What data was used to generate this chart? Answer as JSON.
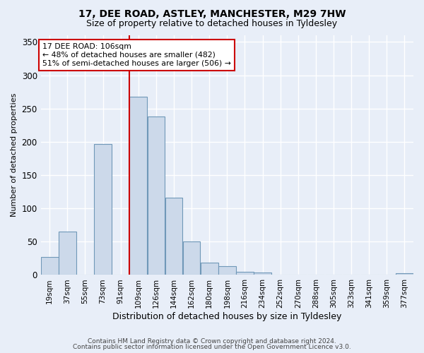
{
  "title_line1": "17, DEE ROAD, ASTLEY, MANCHESTER, M29 7HW",
  "title_line2": "Size of property relative to detached houses in Tyldesley",
  "xlabel": "Distribution of detached houses by size in Tyldesley",
  "ylabel": "Number of detached properties",
  "bin_labels": [
    "19sqm",
    "37sqm",
    "55sqm",
    "73sqm",
    "91sqm",
    "109sqm",
    "126sqm",
    "144sqm",
    "162sqm",
    "180sqm",
    "198sqm",
    "216sqm",
    "234sqm",
    "252sqm",
    "270sqm",
    "288sqm",
    "305sqm",
    "323sqm",
    "341sqm",
    "359sqm",
    "377sqm"
  ],
  "bar_heights": [
    27,
    65,
    0,
    197,
    0,
    268,
    238,
    116,
    50,
    18,
    13,
    5,
    4,
    0,
    1,
    0,
    0,
    0,
    0,
    0,
    3
  ],
  "bar_color": "#ccd9ea",
  "bar_edge_color": "#7098b8",
  "vline_x_index": 5,
  "vline_color": "#cc0000",
  "annotation_text": "17 DEE ROAD: 106sqm\n← 48% of detached houses are smaller (482)\n51% of semi-detached houses are larger (506) →",
  "annotation_box_color": "white",
  "annotation_border_color": "#cc0000",
  "ylim": [
    0,
    360
  ],
  "yticks": [
    0,
    50,
    100,
    150,
    200,
    250,
    300,
    350
  ],
  "footer_line1": "Contains HM Land Registry data © Crown copyright and database right 2024.",
  "footer_line2": "Contains public sector information licensed under the Open Government Licence v3.0.",
  "bg_color": "#e8eef8",
  "plot_bg_color": "#e8eef8",
  "title_fontsize": 10,
  "subtitle_fontsize": 9,
  "ylabel_fontsize": 8,
  "xlabel_fontsize": 9
}
